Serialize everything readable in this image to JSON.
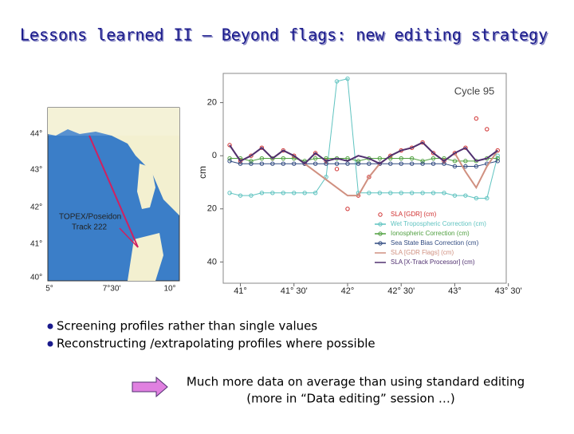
{
  "title": "Lessons learned II – Beyond flags: new editing strategy",
  "map": {
    "lat_labels": [
      "44°",
      "43°",
      "42°",
      "41°",
      "40°"
    ],
    "lon_labels": [
      "5°",
      "7°30'",
      "10°"
    ],
    "track_label": [
      "TOPEX/Poseidon",
      "Track 222"
    ]
  },
  "chart_data": {
    "type": "line",
    "annotation": "Cycle 95",
    "ylabel": "cm",
    "x": [
      40.9,
      41.0,
      41.1,
      41.2,
      41.3,
      41.4,
      41.5,
      41.6,
      41.7,
      41.8,
      41.9,
      42.0,
      42.1,
      42.2,
      42.3,
      42.4,
      42.5,
      42.6,
      42.7,
      42.8,
      42.9,
      43.0,
      43.1,
      43.2,
      43.3,
      43.4
    ],
    "xlim": [
      40.84,
      43.48
    ],
    "xticks": [
      {
        "value": 41,
        "label": "41°"
      },
      {
        "value": 41.5,
        "label": "41° 30'"
      },
      {
        "value": 42,
        "label": "42°"
      },
      {
        "value": 42.5,
        "label": "42° 30'"
      },
      {
        "value": 43,
        "label": "43°"
      },
      {
        "value": 43.5,
        "label": "43° 30'"
      }
    ],
    "ylim": [
      -48,
      31
    ],
    "yticks": [
      20,
      0,
      {
        "value": -20,
        "label": "20"
      },
      {
        "value": -40,
        "label": "40"
      }
    ],
    "legend": "lower right",
    "series": [
      {
        "name": "SLA [GDR] (cm)",
        "color": "#d03030",
        "style": "markers",
        "values": [
          4,
          -2,
          0,
          3,
          -1,
          2,
          0,
          -3,
          1,
          -2,
          -5,
          -20,
          -15,
          -8,
          -3,
          0,
          2,
          3,
          5,
          1,
          -2,
          1,
          3,
          14,
          10,
          2
        ]
      },
      {
        "name": "Wet Tropospheric Correction (cm)",
        "color": "#5fc3c0",
        "style": "both",
        "values": [
          -14,
          -15,
          -15,
          -14,
          -14,
          -14,
          -14,
          -14,
          -14,
          -8,
          28,
          29,
          -14,
          -14,
          -14,
          -14,
          -14,
          -14,
          -14,
          -14,
          -14,
          -15,
          -15,
          -16,
          -16,
          0
        ]
      },
      {
        "name": "Ionospheric Correction (cm)",
        "color": "#50a040",
        "style": "both",
        "values": [
          -1,
          -1,
          -2,
          -1,
          -1,
          -1,
          -1,
          -2,
          -1,
          -1,
          -1,
          -1,
          -2,
          -1,
          -1,
          -1,
          -1,
          -1,
          -2,
          -1,
          -1,
          -2,
          -2,
          -2,
          -1,
          -1
        ]
      },
      {
        "name": "Sea State Bias Correction (cm)",
        "color": "#304a80",
        "style": "both",
        "values": [
          -2,
          -3,
          -3,
          -3,
          -3,
          -3,
          -3,
          -3,
          -3,
          -3,
          -3,
          -3,
          -3,
          -3,
          -3,
          -3,
          -3,
          -3,
          -3,
          -3,
          -3,
          -4,
          -4,
          -4,
          -3,
          -2
        ]
      },
      {
        "name": "SLA [GDR Flags] (cm)",
        "color": "#d09080",
        "style": "line",
        "values": [
          4,
          -2,
          0,
          3,
          -1,
          2,
          0,
          -3,
          -6,
          -9,
          -12,
          -15,
          -15,
          -8,
          -3,
          0,
          2,
          3,
          5,
          1,
          -2,
          1,
          -6,
          -12,
          -4,
          2
        ]
      },
      {
        "name": "SLA [X-Track Processor] (cm)",
        "color": "#503070",
        "style": "line",
        "values": [
          4,
          -2,
          0,
          3,
          -1,
          2,
          0,
          -3,
          1,
          -2,
          -1,
          -2,
          0,
          -1,
          -3,
          0,
          2,
          3,
          5,
          1,
          -2,
          1,
          3,
          -2,
          -1,
          2
        ]
      }
    ]
  },
  "bullets": [
    "Screening profiles rather than single values",
    "Reconstructing /extrapolating profiles where possible"
  ],
  "conclusion": [
    "Much more data on average than using standard editing",
    "(more in “Data editing” session …)"
  ]
}
